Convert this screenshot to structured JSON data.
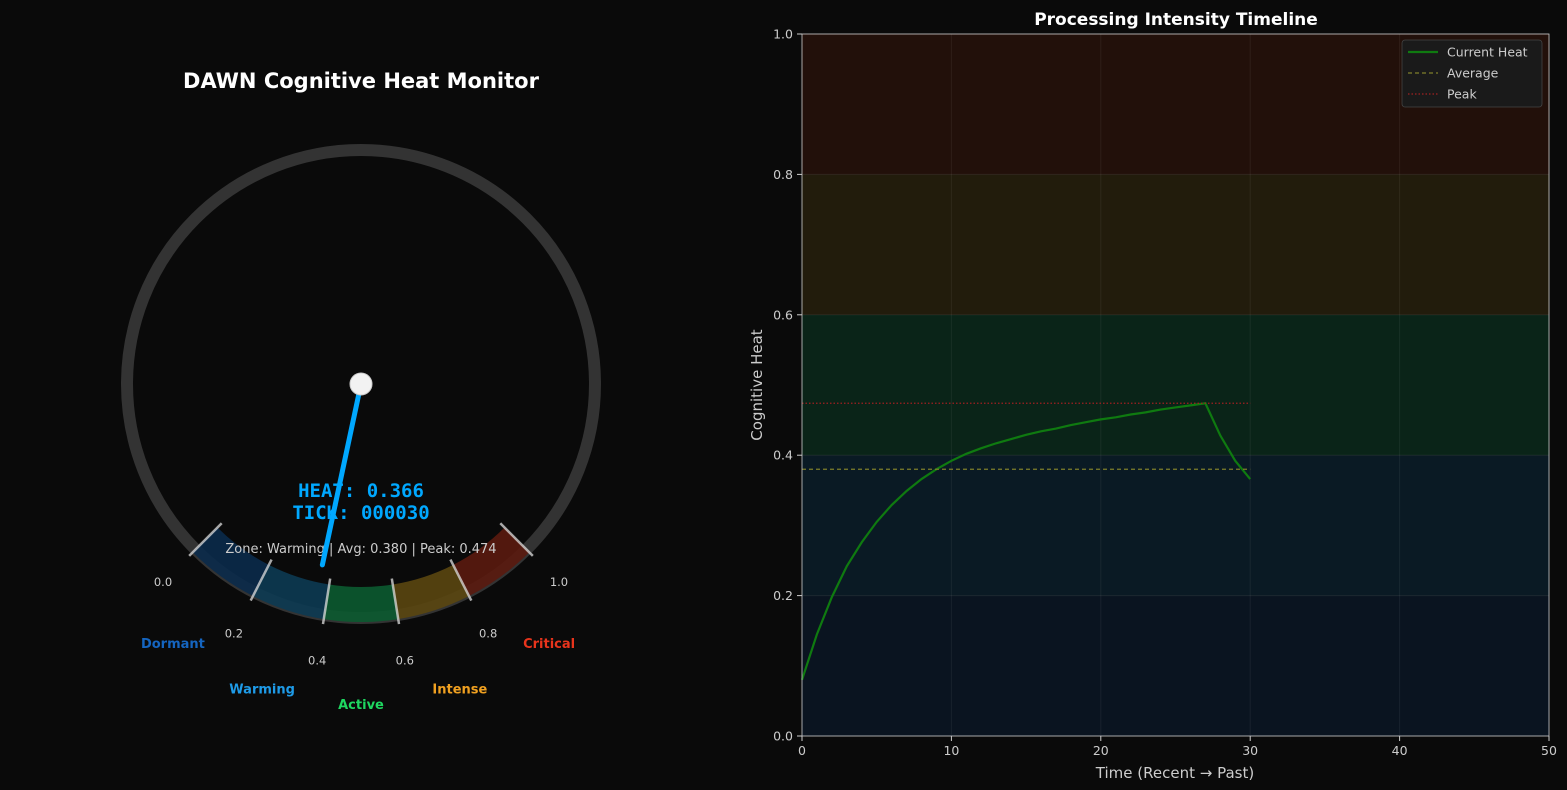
{
  "colors": {
    "background": "#0a0a0a",
    "dial_ring": "#333333",
    "needle": "#00a8ff",
    "text_light": "#cccccc",
    "title": "#ffffff",
    "current_heat": "#0f7a10",
    "average": "#7f7f2a",
    "peak": "#a02020"
  },
  "gauge": {
    "title": "DAWN Cognitive Heat Monitor",
    "heat_value": 0.366,
    "heat_text": "HEAT: 0.366",
    "tick_text": "TICK: 000030",
    "status_text": "Zone: Warming | Avg: 0.380 | Peak: 0.474",
    "tick_labels": [
      {
        "value": 0.0,
        "label": "0.0"
      },
      {
        "value": 0.2,
        "label": "0.2"
      },
      {
        "value": 0.4,
        "label": "0.4"
      },
      {
        "value": 0.6,
        "label": "0.6"
      },
      {
        "value": 0.8,
        "label": "0.8"
      },
      {
        "value": 1.0,
        "label": "1.0"
      }
    ],
    "zones": [
      {
        "name": "Dormant",
        "from": 0.0,
        "to": 0.2,
        "color": "#0a2a4a",
        "label_color": "#1565c0"
      },
      {
        "name": "Warming",
        "from": 0.2,
        "to": 0.4,
        "color": "#0c3a52",
        "label_color": "#1e9be8"
      },
      {
        "name": "Active",
        "from": 0.4,
        "to": 0.6,
        "color": "#0b5a30",
        "label_color": "#1ed760"
      },
      {
        "name": "Intense",
        "from": 0.6,
        "to": 0.8,
        "color": "#5a4610",
        "label_color": "#f0a020"
      },
      {
        "name": "Critical",
        "from": 0.8,
        "to": 1.0,
        "color": "#5a1a0e",
        "label_color": "#e8341c"
      }
    ]
  },
  "chart_data": {
    "type": "line",
    "title": "Processing Intensity Timeline",
    "xlabel": "Time (Recent → Past)",
    "ylabel": "Cognitive Heat",
    "xlim": [
      0,
      50
    ],
    "ylim": [
      0,
      1
    ],
    "xticks": [
      0,
      10,
      20,
      30,
      40,
      50
    ],
    "yticks": [
      0.0,
      0.2,
      0.4,
      0.6,
      0.8,
      1.0
    ],
    "xtick_labels": [
      "0",
      "10",
      "20",
      "30",
      "40",
      "50"
    ],
    "ytick_labels": [
      "0.0",
      "0.2",
      "0.4",
      "0.6",
      "0.8",
      "1.0"
    ],
    "grid": true,
    "legend_position": "top-right",
    "bands": [
      {
        "from": 0.0,
        "to": 0.2,
        "color": "#0a1420"
      },
      {
        "from": 0.2,
        "to": 0.4,
        "color": "#0a1a24"
      },
      {
        "from": 0.4,
        "to": 0.6,
        "color": "#0a2418"
      },
      {
        "from": 0.6,
        "to": 0.8,
        "color": "#221c0c"
      },
      {
        "from": 0.8,
        "to": 1.0,
        "color": "#22100a"
      }
    ],
    "series": [
      {
        "name": "Current Heat",
        "style": "solid",
        "x": [
          0,
          1,
          2,
          3,
          4,
          5,
          6,
          7,
          8,
          9,
          10,
          11,
          12,
          13,
          14,
          15,
          16,
          17,
          18,
          19,
          20,
          21,
          22,
          23,
          24,
          25,
          26,
          27,
          28,
          29,
          30
        ],
        "y": [
          0.08,
          0.145,
          0.198,
          0.242,
          0.276,
          0.305,
          0.329,
          0.349,
          0.366,
          0.38,
          0.392,
          0.402,
          0.41,
          0.417,
          0.423,
          0.429,
          0.434,
          0.438,
          0.443,
          0.447,
          0.451,
          0.454,
          0.458,
          0.461,
          0.465,
          0.468,
          0.471,
          0.474,
          0.428,
          0.392,
          0.366
        ]
      },
      {
        "name": "Average",
        "style": "dashed",
        "x": [
          0,
          30
        ],
        "y": [
          0.38,
          0.38
        ]
      },
      {
        "name": "Peak",
        "style": "dotted",
        "x": [
          0,
          30
        ],
        "y": [
          0.474,
          0.474
        ]
      }
    ]
  }
}
